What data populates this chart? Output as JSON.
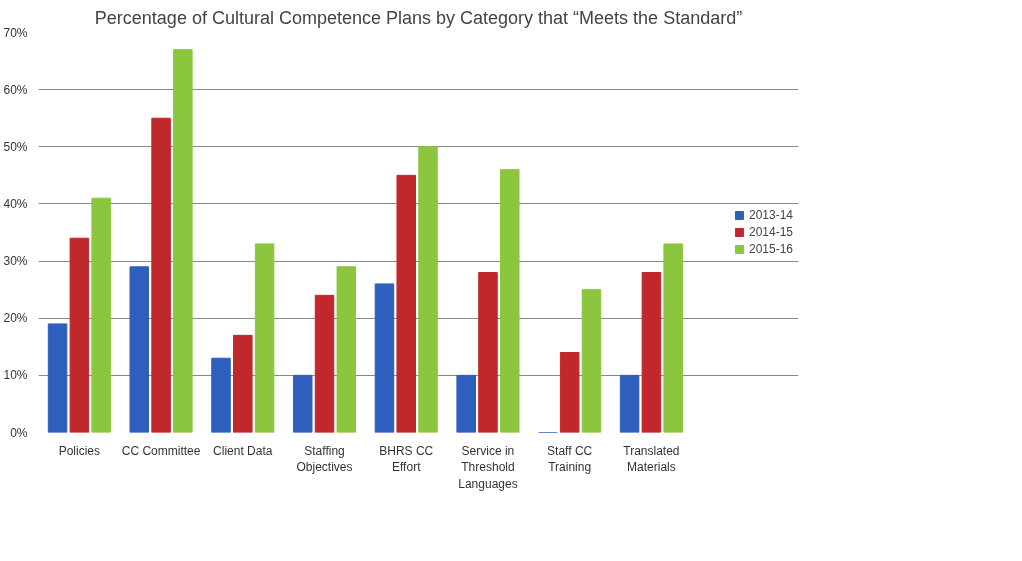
{
  "chart_data": {
    "type": "bar",
    "title": "Percentage of Cultural Competence Plans by Category that “Meets the Standard”",
    "categories": [
      "Policies",
      "CC Committee",
      "Client Data",
      "Staffing Objectives",
      "BHRS CC Effort",
      "Service in Threshold Languages",
      "Staff CC Training",
      "Translated Materials"
    ],
    "series": [
      {
        "name": "2013-14",
        "color": "#2f5fbd",
        "values": [
          19,
          29,
          13,
          10,
          26,
          10,
          0,
          10
        ]
      },
      {
        "name": "2014-15",
        "color": "#c0282c",
        "values": [
          34,
          55,
          17,
          24,
          45,
          28,
          14,
          28
        ]
      },
      {
        "name": "2015-16",
        "color": "#8cc63e",
        "values": [
          41,
          67,
          33,
          29,
          50,
          46,
          25,
          33
        ]
      }
    ],
    "ylim": [
      0,
      70
    ],
    "yticks": [
      {
        "value": 0,
        "label": "0%"
      },
      {
        "value": 10,
        "label": "10%"
      },
      {
        "value": 20,
        "label": "20%"
      },
      {
        "value": 30,
        "label": "30%"
      },
      {
        "value": 40,
        "label": "40%"
      },
      {
        "value": 50,
        "label": "50%"
      },
      {
        "value": 60,
        "label": "60%"
      },
      {
        "value": 70,
        "label": "70%"
      }
    ],
    "grid": "y",
    "legend": "right"
  }
}
